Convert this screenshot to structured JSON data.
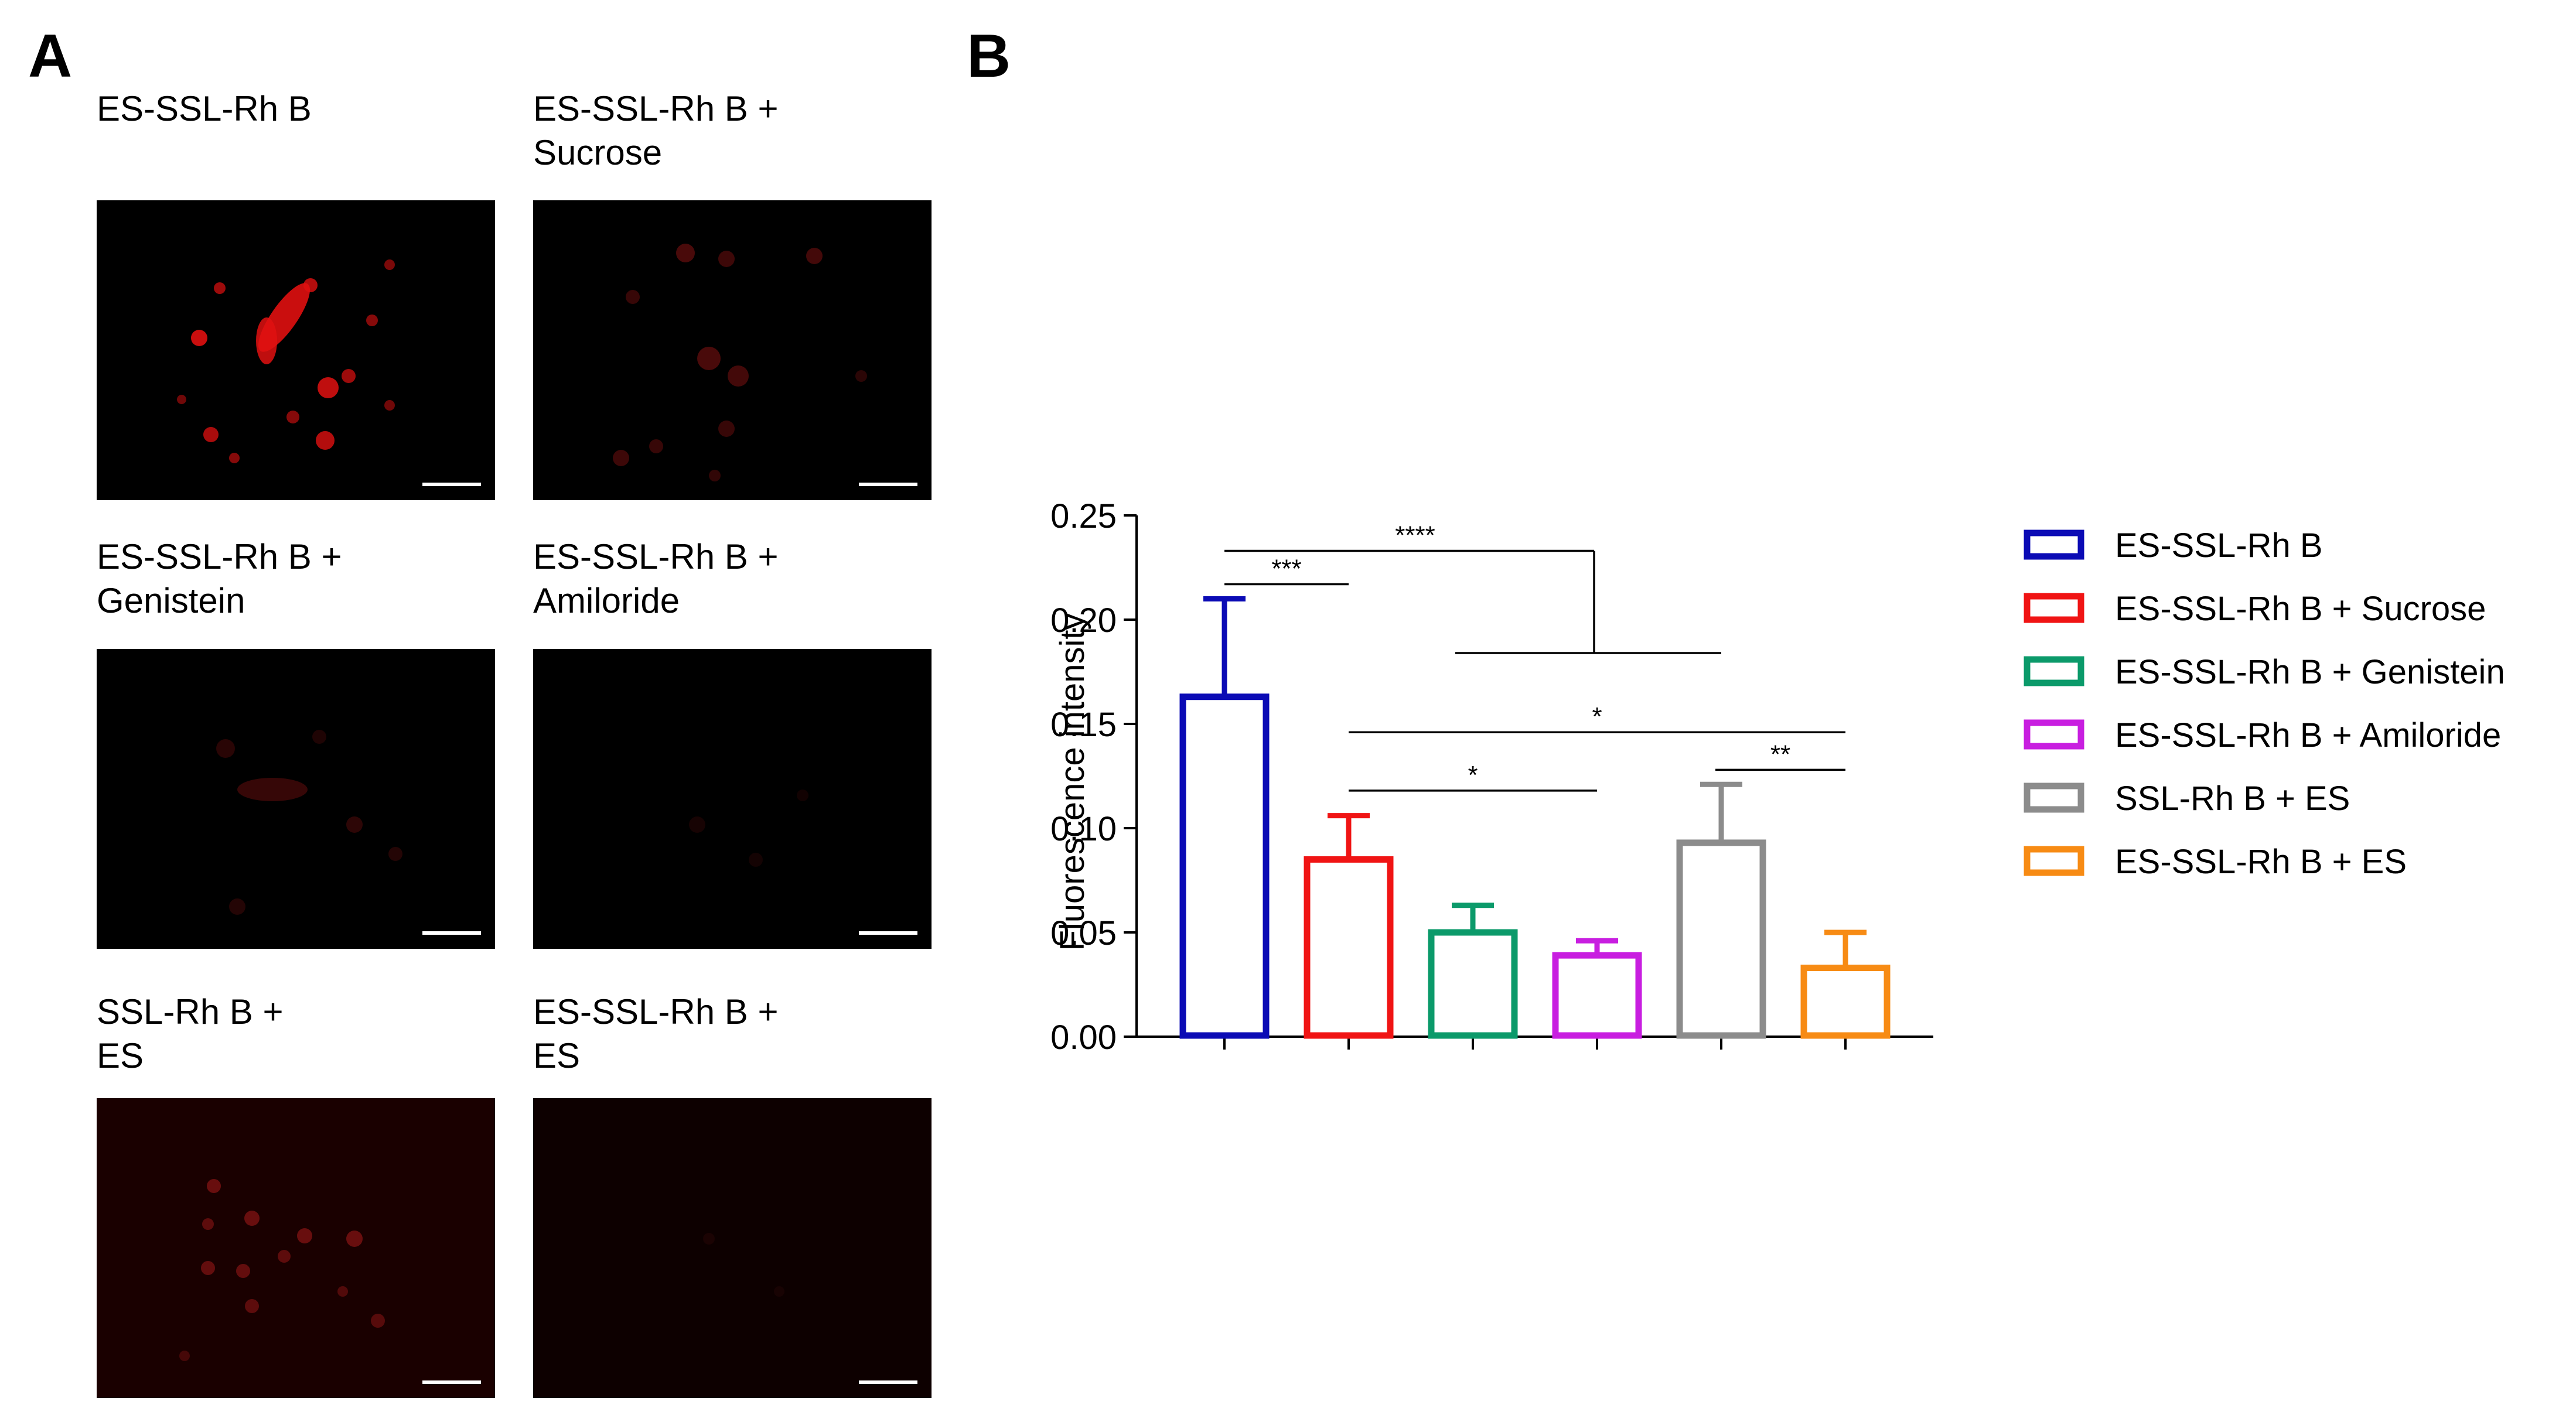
{
  "panels": {
    "a_letter": "A",
    "b_letter": "B"
  },
  "micrographs": [
    {
      "label": "ES-SSL-Rh B",
      "intensity": 1.0
    },
    {
      "label": "ES-SSL-Rh B +\nSucrose",
      "intensity": 0.35
    },
    {
      "label": "ES-SSL-Rh B +\nGenistein",
      "intensity": 0.2
    },
    {
      "label": "ES-SSL-Rh B +\nAmiloride",
      "intensity": 0.08
    },
    {
      "label": "SSL-Rh B +\nES",
      "intensity": 0.4
    },
    {
      "label": "ES-SSL-Rh B +\nES",
      "intensity": 0.1
    }
  ],
  "chart_data": {
    "type": "bar",
    "title": "",
    "xlabel": "",
    "ylabel": "Fluorescence intensity",
    "ylim": [
      0,
      0.25
    ],
    "yticks": [
      "0.00",
      "0.05",
      "0.10",
      "0.15",
      "0.20",
      "0.25"
    ],
    "grid": false,
    "legend_position": "right",
    "series": [
      {
        "name": "ES-SSL-Rh B",
        "value": 0.163,
        "error": 0.047,
        "color": "#0b0bb5"
      },
      {
        "name": "ES-SSL-Rh B + Sucrose",
        "value": 0.085,
        "error": 0.021,
        "color": "#f01414"
      },
      {
        "name": "ES-SSL-Rh B + Genistein",
        "value": 0.05,
        "error": 0.013,
        "color": "#0b9a6a"
      },
      {
        "name": "ES-SSL-Rh B + Amiloride",
        "value": 0.039,
        "error": 0.007,
        "color": "#c81ee0"
      },
      {
        "name": "SSL-Rh B + ES",
        "value": 0.093,
        "error": 0.028,
        "color": "#8c8c8c"
      },
      {
        "name": "ES-SSL-Rh B + ES",
        "value": 0.033,
        "error": 0.017,
        "color": "#f78b14"
      }
    ],
    "significance": [
      {
        "label": "***",
        "from": 0,
        "to": 1
      },
      {
        "label": "****",
        "from": 0,
        "to": [
          2,
          3,
          4,
          5
        ]
      },
      {
        "label": "*",
        "from": 1,
        "to": 5
      },
      {
        "label": "*",
        "from": 1,
        "to": 3
      },
      {
        "label": "**",
        "from": 4,
        "to": 5
      }
    ]
  }
}
